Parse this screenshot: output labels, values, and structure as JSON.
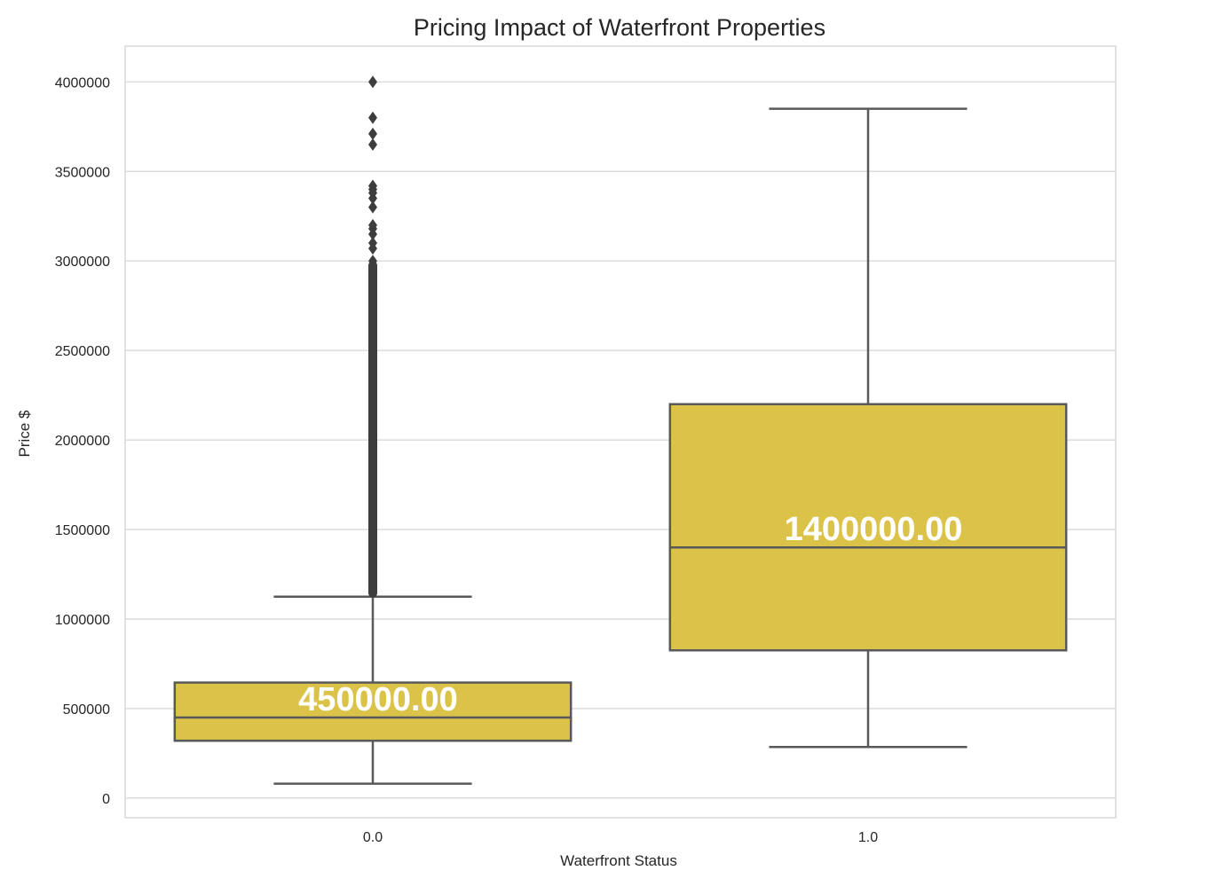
{
  "chart_data": {
    "type": "box",
    "title": "Pricing Impact of Waterfront Properties",
    "xlabel": "Waterfront Status",
    "ylabel": "Price $",
    "ylim": [
      -110000,
      4200000
    ],
    "yticks": [
      0,
      500000,
      1000000,
      1500000,
      2000000,
      2500000,
      3000000,
      3500000,
      4000000
    ],
    "ytick_labels": [
      "0",
      "500000",
      "1000000",
      "1500000",
      "2000000",
      "2500000",
      "3000000",
      "3500000",
      "4000000"
    ],
    "categories": [
      "0.0",
      "1.0"
    ],
    "grid": true,
    "box_color": "#dbc34a",
    "line_color": "#595959",
    "boxes": [
      {
        "category": "0.0",
        "whisker_low": 80000,
        "q1": 320000,
        "median": 450000,
        "q3": 645000,
        "whisker_high": 1125000,
        "median_label": "450000.00",
        "outliers": [
          4000000,
          3800000,
          3710000,
          3650000,
          3420000,
          3400000,
          3380000,
          3350000,
          3300000,
          3200000,
          3180000,
          3150000,
          3100000,
          3070000,
          3000000
        ],
        "outlier_band": [
          1120000,
          3000000
        ]
      },
      {
        "category": "1.0",
        "whisker_low": 285000,
        "q1": 825000,
        "median": 1400000,
        "q3": 2200000,
        "whisker_high": 3850000,
        "median_label": "1400000.00",
        "outliers": []
      }
    ]
  }
}
